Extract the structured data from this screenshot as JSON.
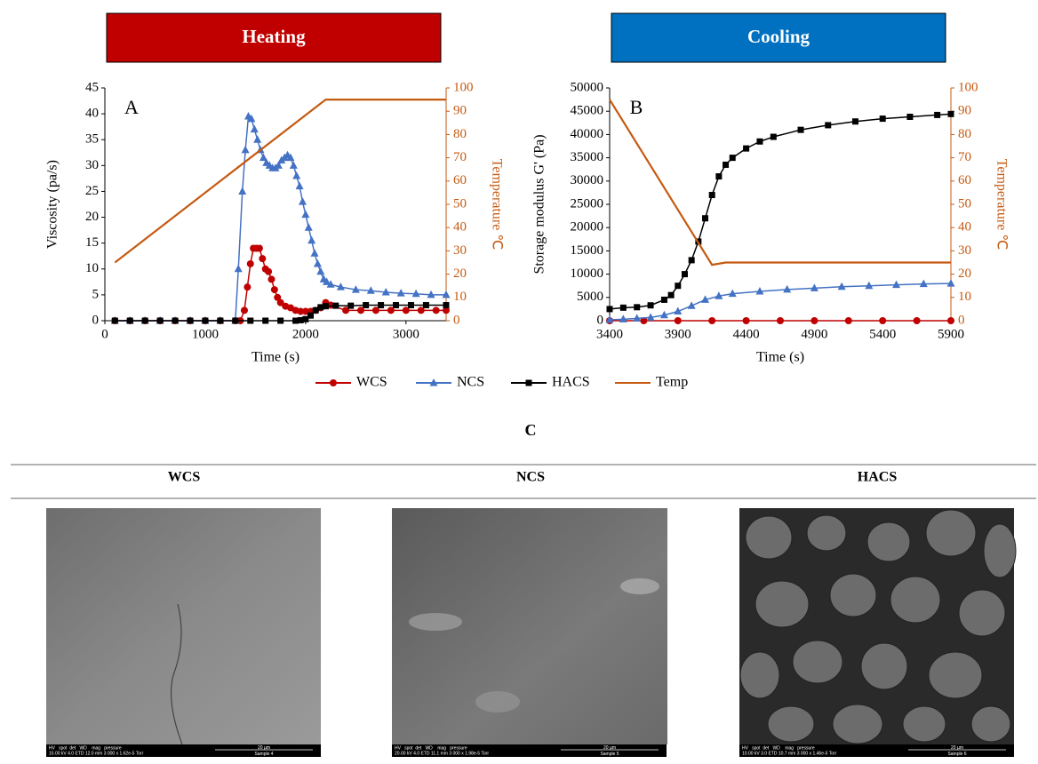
{
  "headers": [
    "Heating",
    "Cooling"
  ],
  "chart_data": [
    {
      "type": "line",
      "label": "A",
      "x_label": "Time (s)",
      "y_label": "Viscosity (pa/s)",
      "y2_label": "Temperature ℃",
      "xlim": [
        0,
        3400
      ],
      "xticks": [
        0,
        1000,
        2000,
        3000
      ],
      "ylim": [
        0,
        45
      ],
      "yticks": [
        0,
        5,
        10,
        15,
        20,
        25,
        30,
        35,
        40,
        45
      ],
      "y2lim": [
        0,
        100
      ],
      "y2ticks": [
        0,
        10,
        20,
        30,
        40,
        50,
        60,
        70,
        80,
        90,
        100
      ],
      "series": [
        {
          "name": "WCS",
          "color": "#c00000",
          "marker": "circle",
          "x": [
            100,
            250,
            400,
            550,
            700,
            850,
            1000,
            1150,
            1300,
            1350,
            1390,
            1420,
            1450,
            1480,
            1510,
            1540,
            1570,
            1600,
            1630,
            1660,
            1690,
            1720,
            1750,
            1800,
            1850,
            1900,
            1950,
            2000,
            2050,
            2100,
            2150,
            2200,
            2250,
            2400,
            2550,
            2700,
            2850,
            3000,
            3150,
            3300,
            3400
          ],
          "values": [
            0,
            0,
            0,
            0,
            0,
            0,
            0,
            0,
            0,
            0,
            2,
            6.5,
            11,
            14,
            14,
            14,
            12,
            10,
            9.5,
            8,
            6,
            4.5,
            3.5,
            2.8,
            2.5,
            2,
            1.8,
            1.8,
            1.8,
            2,
            2.5,
            3.5,
            3,
            2,
            2,
            2,
            2,
            2,
            2,
            2,
            2
          ]
        },
        {
          "name": "NCS",
          "color": "#4472c4",
          "marker": "triangle",
          "x": [
            100,
            250,
            400,
            550,
            700,
            850,
            1000,
            1150,
            1300,
            1330,
            1370,
            1400,
            1430,
            1460,
            1490,
            1520,
            1550,
            1580,
            1610,
            1640,
            1670,
            1700,
            1730,
            1760,
            1790,
            1820,
            1850,
            1880,
            1910,
            1940,
            1970,
            2000,
            2030,
            2060,
            2090,
            2120,
            2150,
            2180,
            2210,
            2250,
            2350,
            2500,
            2650,
            2800,
            2950,
            3100,
            3250,
            3400
          ],
          "values": [
            0,
            0,
            0,
            0,
            0,
            0,
            0,
            0,
            0,
            10,
            25,
            33,
            39.5,
            39,
            37,
            35,
            33,
            31.5,
            30.5,
            30,
            29.5,
            29.5,
            30,
            31,
            31.5,
            32,
            31.5,
            30,
            28,
            26,
            23,
            20.5,
            18,
            15.5,
            13,
            11,
            9.5,
            8,
            7.5,
            7,
            6.5,
            6,
            5.8,
            5.5,
            5.3,
            5.2,
            5,
            5
          ]
        },
        {
          "name": "HACS",
          "color": "#000000",
          "marker": "square",
          "x": [
            100,
            250,
            400,
            550,
            700,
            850,
            1000,
            1150,
            1300,
            1450,
            1600,
            1750,
            1900,
            1950,
            2000,
            2050,
            2100,
            2150,
            2200,
            2300,
            2450,
            2600,
            2750,
            2900,
            3050,
            3200,
            3400
          ],
          "values": [
            0,
            0,
            0,
            0,
            0,
            0,
            0,
            0,
            0,
            0,
            0,
            0,
            0,
            0.1,
            0.3,
            1,
            2,
            2.6,
            2.8,
            2.9,
            2.9,
            3,
            3,
            3,
            3,
            3,
            3
          ]
        },
        {
          "name": "Temp",
          "color": "#c55a11",
          "marker": null,
          "axis": "y2",
          "x": [
            100,
            2200,
            3400
          ],
          "values": [
            25,
            95,
            95
          ]
        }
      ]
    },
    {
      "type": "line",
      "label": "B",
      "x_label": "Time (s)",
      "y_label": "Storage modulus G' (Pa)",
      "y2_label": "Temperature ℃",
      "xlim": [
        3400,
        5900
      ],
      "xticks": [
        3400,
        3900,
        4400,
        4900,
        5400,
        5900
      ],
      "ylim": [
        0,
        50000
      ],
      "yticks": [
        0,
        5000,
        10000,
        15000,
        20000,
        25000,
        30000,
        35000,
        40000,
        45000,
        50000
      ],
      "y2lim": [
        0,
        100
      ],
      "y2ticks": [
        0,
        10,
        20,
        30,
        40,
        50,
        60,
        70,
        80,
        90,
        100
      ],
      "series": [
        {
          "name": "WCS",
          "color": "#c00000",
          "marker": "circle",
          "x": [
            3400,
            3650,
            3900,
            4150,
            4400,
            4650,
            4900,
            5150,
            5400,
            5650,
            5900
          ],
          "values": [
            0,
            0,
            0,
            0,
            0,
            0,
            0,
            0,
            0,
            0,
            0
          ]
        },
        {
          "name": "NCS",
          "color": "#4472c4",
          "marker": "triangle",
          "x": [
            3400,
            3500,
            3600,
            3700,
            3800,
            3900,
            4000,
            4100,
            4200,
            4300,
            4500,
            4700,
            4900,
            5100,
            5300,
            5500,
            5700,
            5900
          ],
          "values": [
            200,
            300,
            500,
            700,
            1200,
            2000,
            3200,
            4500,
            5300,
            5800,
            6300,
            6700,
            7000,
            7300,
            7500,
            7700,
            7900,
            8000
          ]
        },
        {
          "name": "HACS",
          "color": "#000000",
          "marker": "square",
          "x": [
            3400,
            3500,
            3600,
            3700,
            3800,
            3850,
            3900,
            3950,
            4000,
            4050,
            4100,
            4150,
            4200,
            4250,
            4300,
            4400,
            4500,
            4600,
            4800,
            5000,
            5200,
            5400,
            5600,
            5800,
            5900
          ],
          "values": [
            2500,
            2800,
            2900,
            3300,
            4500,
            5500,
            7500,
            10000,
            13000,
            17000,
            22000,
            27000,
            31000,
            33500,
            35000,
            37000,
            38500,
            39500,
            41000,
            42000,
            42800,
            43400,
            43800,
            44200,
            44400
          ]
        },
        {
          "name": "Temp",
          "color": "#c55a11",
          "marker": null,
          "axis": "y2",
          "x": [
            3400,
            4150,
            4250,
            5900
          ],
          "values": [
            95,
            24,
            25,
            25
          ]
        }
      ]
    }
  ],
  "section_c": {
    "label": "C",
    "columns": [
      "WCS",
      "NCS",
      "HACS"
    ],
    "info_labels": "HV   spot  det   WD    mag   pressure",
    "images": [
      {
        "settings": "15.00 kV 4.0 ETD 12.0 mm 3 000 x 1.62e-5 Torr",
        "scale": "20 µm",
        "sample": "Sample 4"
      },
      {
        "settings": "20.00 kV 4.0 ETD 11.1 mm 3 000 x 1.98e-5 Torr",
        "scale": "20 µm",
        "sample": "Sample 5"
      },
      {
        "settings": "10.00 kV 3.0 ETD 10.7 mm 3 000 x 1.46e-5 Torr",
        "scale": "20 µm",
        "sample": "Sample 6"
      }
    ]
  }
}
